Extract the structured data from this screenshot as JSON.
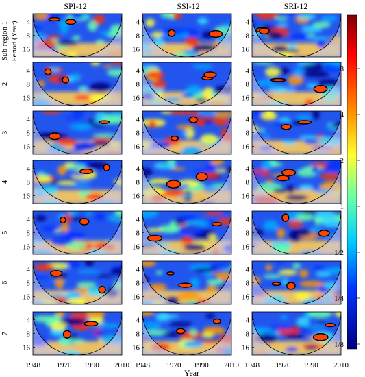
{
  "figure": {
    "column_titles": [
      "SPI-12",
      "SSI-12",
      "SRI-12"
    ],
    "row_labels": [
      "Sub-region 1",
      "2",
      "3",
      "4",
      "5",
      "6",
      "7"
    ],
    "ylabel": "Period (Year)",
    "yticks": [
      "4",
      "8",
      "16"
    ],
    "xlabel": "Year",
    "xticks": [
      [
        "1948",
        "1970",
        "1990",
        "2010"
      ],
      [
        "1948",
        "1970",
        "1990",
        "2010"
      ],
      [
        "1948",
        "1970",
        "1990",
        "2010"
      ]
    ],
    "colorbar": {
      "ticks": [
        "8",
        "4",
        "2",
        "1",
        "1/2",
        "1/4",
        "1/8"
      ]
    },
    "colors": {
      "low": "#00007f",
      "mid_low": "#00aaff",
      "mid": "#ffff33",
      "high": "#7f0000",
      "mask": "#b0b0dd"
    }
  }
}
